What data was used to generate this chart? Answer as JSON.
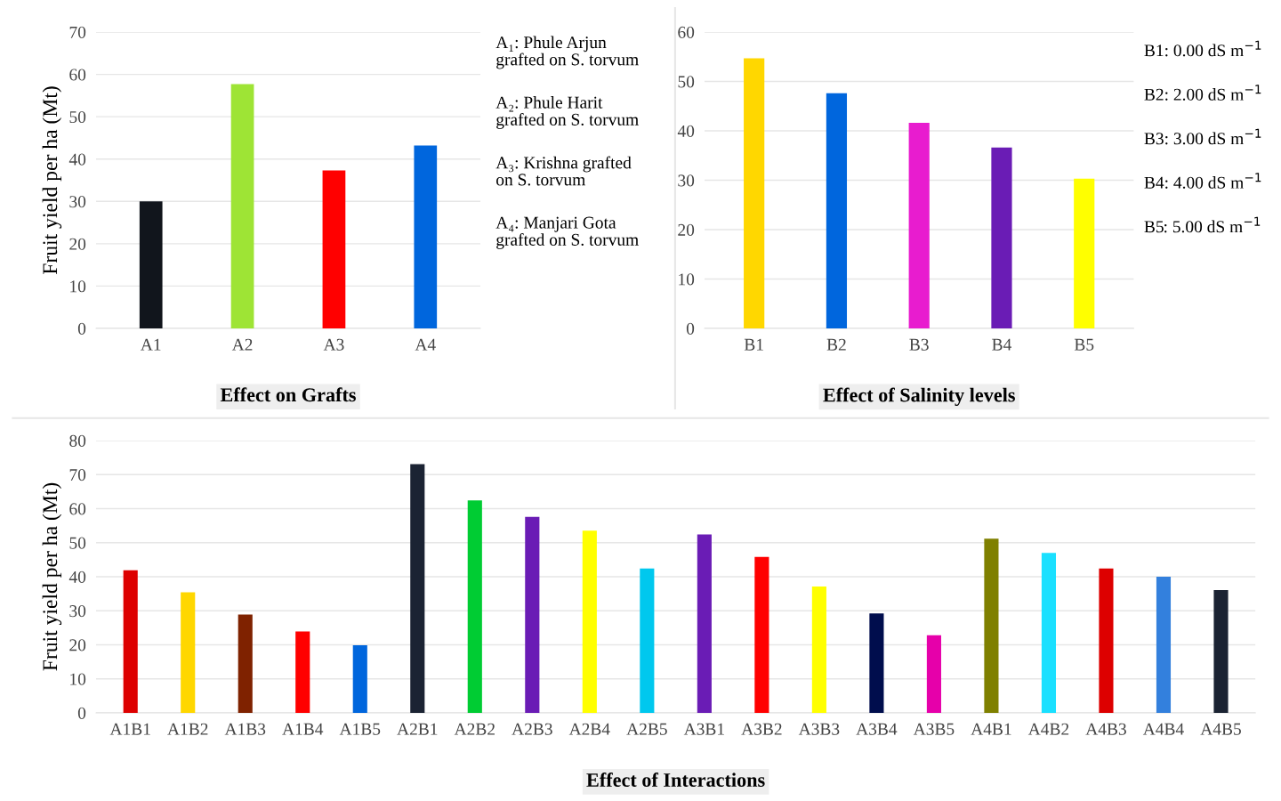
{
  "chart_data": [
    {
      "type": "bar",
      "title": "Effect on Grafts",
      "ylabel": "Fruit yield per ha (Mt)",
      "categories": [
        "A1",
        "A2",
        "A3",
        "A4"
      ],
      "values": [
        30,
        57.7,
        37.3,
        43.2
      ],
      "colors": [
        "#11151c",
        "#9ee435",
        "#ff0000",
        "#0066dd"
      ],
      "ylim": [
        0,
        70
      ],
      "yticks": [
        0,
        10,
        20,
        30,
        40,
        50,
        60,
        70
      ],
      "grid": "y",
      "annotations": [
        "A₁: Phule Arjun\ngrafted on S. torvum",
        "A₂: Phule Harit\ngrafted on S. torvum",
        "A₃: Krishna grafted\non S. torvum",
        "A₄: Manjari Gota\ngrafted on S. torvum"
      ]
    },
    {
      "type": "bar",
      "title": "Effect of Salinity levels",
      "categories": [
        "B1",
        "B2",
        "B3",
        "B4",
        "B5"
      ],
      "values": [
        54.7,
        47.6,
        41.6,
        36.6,
        30.3
      ],
      "colors": [
        "#ffd700",
        "#0066dd",
        "#e81ccf",
        "#6a1cb5",
        "#ffff00"
      ],
      "ylim": [
        0,
        60
      ],
      "yticks": [
        0,
        10,
        20,
        30,
        40,
        50,
        60
      ],
      "grid": "y",
      "annotations": [
        "B1: 0.00 dS m$^{−1}$",
        "B2: 2.00 dS m$^{−1}$",
        "B3: 3.00 dS m$^{−1}$",
        "B4: 4.00 dS m$^{−1}$",
        "B5: 5.00 dS m$^{−1}$"
      ]
    },
    {
      "type": "bar",
      "title": "Effect of Interactions",
      "ylabel": "Fruit yield per ha (Mt)",
      "categories": [
        "A1B1",
        "A1B2",
        "A1B3",
        "A1B4",
        "A1B5",
        "A2B1",
        "A2B2",
        "A2B3",
        "A2B4",
        "A2B5",
        "A3B1",
        "A3B2",
        "A3B3",
        "A3B4",
        "A3B5",
        "A4B1",
        "A4B2",
        "A4B3",
        "A4B4",
        "A4B5"
      ],
      "values": [
        41.9,
        35.4,
        28.9,
        23.9,
        19.9,
        73.1,
        62.4,
        57.6,
        53.5,
        42.4,
        52.4,
        45.8,
        37.1,
        29.2,
        22.8,
        51.2,
        47.0,
        42.4,
        40.0,
        36.1
      ],
      "colors": [
        "#dd0000",
        "#ffd700",
        "#7f2200",
        "#ff0000",
        "#0066dd",
        "#1b2333",
        "#00cc33",
        "#6a1cb5",
        "#ffff00",
        "#00c8ee",
        "#6a1cb5",
        "#ff0000",
        "#ffff00",
        "#000d4d",
        "#e600aa",
        "#7f8000",
        "#1ae0ff",
        "#dd0000",
        "#3380dd",
        "#1b2333"
      ],
      "ylim": [
        0,
        80
      ],
      "yticks": [
        0,
        10,
        20,
        30,
        40,
        50,
        60,
        70,
        80
      ],
      "grid": "y"
    }
  ]
}
